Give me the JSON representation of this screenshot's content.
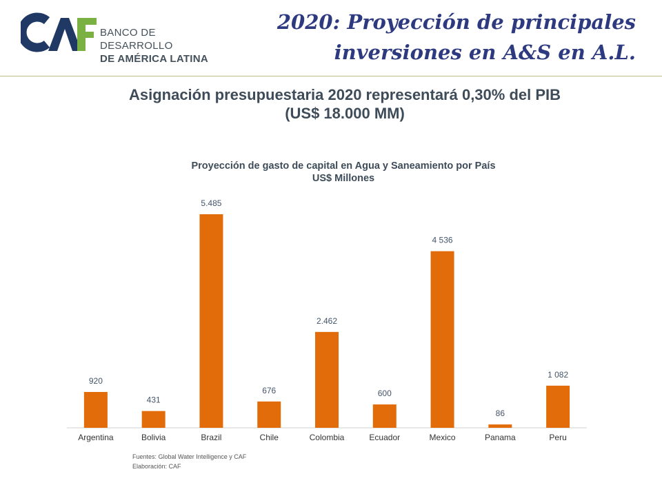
{
  "header": {
    "logo_mark": "CAF",
    "logo_line1": "BANCO DE DESARROLLO",
    "logo_line2": "DE AMÉRICA LATINA",
    "title_line1": "2020:  Proyección de principales",
    "title_line2": "inversiones en A&S en A.L."
  },
  "subtitle": {
    "line1": "Asignación presupuestaria 2020 representará 0,30% del PIB",
    "line2": "(US$ 18.000 MM)"
  },
  "chart_data": {
    "type": "bar",
    "title": "Proyección de gasto de capital en Agua y Saneamiento por País",
    "subtitle": "US$ Millones",
    "categories": [
      "Argentina",
      "Bolivia",
      "Brazil",
      "Chile",
      "Colombia",
      "Ecuador",
      "Mexico",
      "Panama",
      "Peru"
    ],
    "values": [
      920,
      431,
      5485,
      676,
      2462,
      600,
      4536,
      86,
      1082
    ],
    "value_labels": [
      "920",
      "431",
      "5.485",
      "676",
      "2.462",
      "600",
      "4 536",
      "86",
      "1 082"
    ],
    "xlabel": "",
    "ylabel": "",
    "ylim": [
      0,
      5485
    ],
    "grid": false,
    "bar_color": "#e36c0a"
  },
  "sources": {
    "line1": "Fuentes: Global Water Intelligence y CAF",
    "line2": "Elaboración: CAF"
  },
  "colors": {
    "title": "#2e3a80",
    "logo_blue": "#1f3864",
    "logo_green": "#7ab142",
    "bar": "#e36c0a"
  }
}
